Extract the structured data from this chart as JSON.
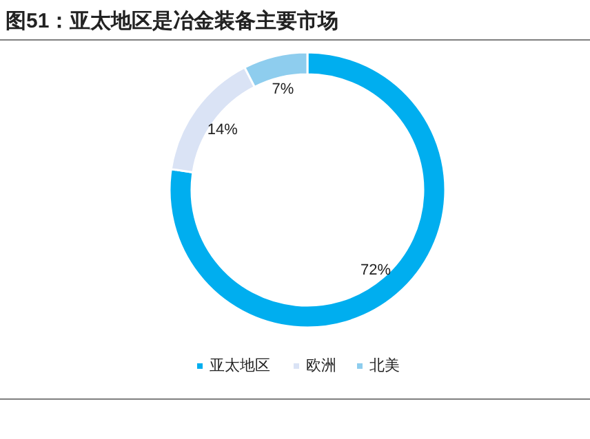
{
  "chart_data": {
    "type": "donut",
    "title": "图51：亚太地区是冶金装备主要市场",
    "categories": [
      "亚太地区",
      "欧洲",
      "北美"
    ],
    "values": [
      72,
      14,
      7
    ],
    "colors": [
      "#00aeef",
      "#dae3f5",
      "#8ecdee"
    ],
    "value_labels": [
      "72%",
      "14%",
      "7%"
    ],
    "legend": "bottom"
  }
}
